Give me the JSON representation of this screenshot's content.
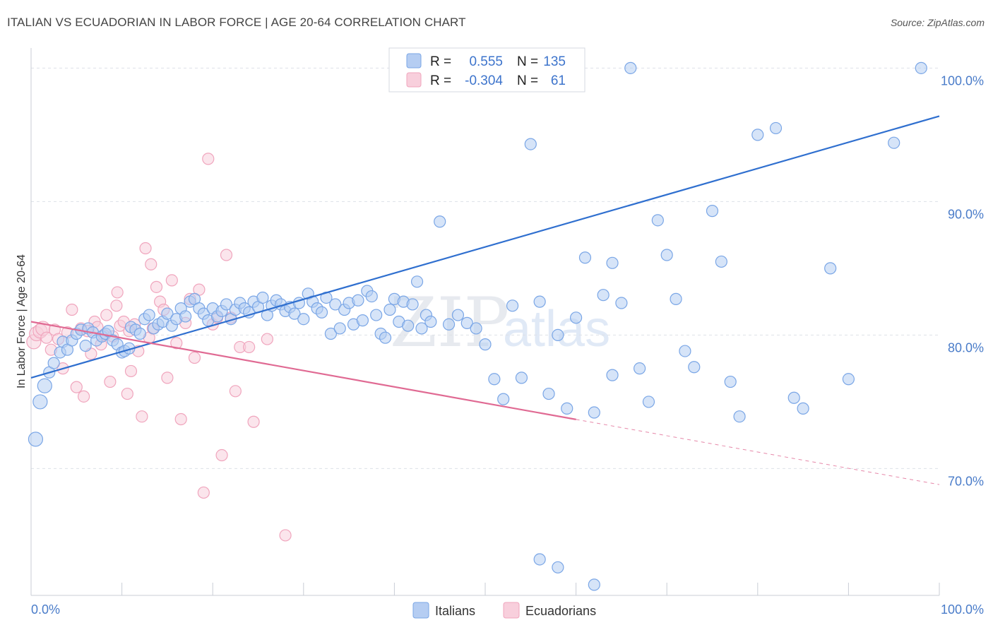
{
  "header": {
    "title": "ITALIAN VS ECUADORIAN IN LABOR FORCE | AGE 20-64 CORRELATION CHART",
    "source": "Source: ZipAtlas.com"
  },
  "watermark": {
    "zip": "ZIP",
    "atlas": "atlas"
  },
  "chart_data": {
    "type": "scatter",
    "xlabel": "",
    "ylabel": "In Labor Force | Age 20-64",
    "xlim": [
      0,
      100
    ],
    "ylim": [
      60.5,
      101.5
    ],
    "x_tick_labels": {
      "left": "0.0%",
      "right": "100.0%"
    },
    "y_ticks": [
      {
        "value": 100,
        "label": "100.0%"
      },
      {
        "value": 90,
        "label": "90.0%"
      },
      {
        "value": 80,
        "label": "80.0%"
      },
      {
        "value": 70,
        "label": "70.0%"
      }
    ],
    "grid": true,
    "legend_position": "top-center",
    "series": [
      {
        "name": "Italians",
        "color": "#7aa6e6",
        "fill": "#b5cdf2",
        "line_color": "#2f6fcf",
        "stats": {
          "r_label": "R =",
          "r": "0.555",
          "n_label": "N =",
          "n": "135"
        },
        "trend": {
          "x0": 0,
          "y0": 76.8,
          "x1": 100,
          "y1": 96.4,
          "dashed_from": null
        },
        "points": [
          [
            0.5,
            72.2
          ],
          [
            1,
            75.0
          ],
          [
            1.5,
            76.2
          ],
          [
            2,
            77.2
          ],
          [
            2.5,
            77.9
          ],
          [
            3.2,
            78.7
          ],
          [
            3.5,
            79.5
          ],
          [
            4,
            78.9
          ],
          [
            4.5,
            79.6
          ],
          [
            5,
            80.1
          ],
          [
            5.5,
            80.4
          ],
          [
            6,
            79.2
          ],
          [
            6.3,
            80.5
          ],
          [
            6.8,
            80.2
          ],
          [
            7.2,
            79.6
          ],
          [
            7.8,
            79.9
          ],
          [
            8.2,
            80.1
          ],
          [
            8.5,
            80.3
          ],
          [
            9,
            79.6
          ],
          [
            9.5,
            79.3
          ],
          [
            10,
            78.7
          ],
          [
            10.3,
            78.8
          ],
          [
            10.8,
            79.0
          ],
          [
            11,
            80.6
          ],
          [
            11.5,
            80.4
          ],
          [
            12,
            80.1
          ],
          [
            12.5,
            81.2
          ],
          [
            13,
            81.5
          ],
          [
            13.5,
            80.5
          ],
          [
            14,
            80.8
          ],
          [
            14.5,
            81.0
          ],
          [
            15,
            81.6
          ],
          [
            15.5,
            80.7
          ],
          [
            16,
            81.2
          ],
          [
            16.5,
            82.0
          ],
          [
            17,
            81.4
          ],
          [
            17.5,
            82.5
          ],
          [
            18,
            82.7
          ],
          [
            18.5,
            82.0
          ],
          [
            19,
            81.6
          ],
          [
            19.5,
            81.1
          ],
          [
            20,
            82.0
          ],
          [
            20.5,
            81.4
          ],
          [
            21,
            81.8
          ],
          [
            21.5,
            82.3
          ],
          [
            22,
            81.2
          ],
          [
            22.5,
            81.9
          ],
          [
            23,
            82.4
          ],
          [
            23.5,
            82.0
          ],
          [
            24,
            81.7
          ],
          [
            24.5,
            82.5
          ],
          [
            25,
            82.1
          ],
          [
            25.5,
            82.8
          ],
          [
            26,
            81.5
          ],
          [
            26.5,
            82.2
          ],
          [
            27,
            82.6
          ],
          [
            27.5,
            82.3
          ],
          [
            28,
            81.8
          ],
          [
            28.5,
            82.1
          ],
          [
            29,
            81.6
          ],
          [
            29.5,
            82.4
          ],
          [
            30,
            81.2
          ],
          [
            30.5,
            83.1
          ],
          [
            31,
            82.5
          ],
          [
            31.5,
            82.0
          ],
          [
            32,
            81.7
          ],
          [
            32.5,
            82.8
          ],
          [
            33,
            80.1
          ],
          [
            33.5,
            82.3
          ],
          [
            34,
            80.5
          ],
          [
            34.5,
            81.9
          ],
          [
            35,
            82.4
          ],
          [
            35.5,
            80.8
          ],
          [
            36,
            82.6
          ],
          [
            36.5,
            81.1
          ],
          [
            37,
            83.3
          ],
          [
            37.5,
            82.9
          ],
          [
            38,
            81.5
          ],
          [
            38.5,
            80.1
          ],
          [
            39,
            79.8
          ],
          [
            39.5,
            81.9
          ],
          [
            40,
            82.7
          ],
          [
            40.5,
            81.0
          ],
          [
            41,
            82.5
          ],
          [
            41.5,
            80.7
          ],
          [
            42,
            82.3
          ],
          [
            42.5,
            84.0
          ],
          [
            43,
            80.5
          ],
          [
            43.5,
            81.5
          ],
          [
            44,
            81.0
          ],
          [
            45,
            88.5
          ],
          [
            46,
            80.8
          ],
          [
            47,
            81.5
          ],
          [
            48,
            80.9
          ],
          [
            49,
            80.5
          ],
          [
            50,
            79.3
          ],
          [
            51,
            76.7
          ],
          [
            52,
            75.2
          ],
          [
            53,
            82.2
          ],
          [
            54,
            76.8
          ],
          [
            55,
            94.3
          ],
          [
            56,
            82.5
          ],
          [
            57,
            75.6
          ],
          [
            58,
            80.0
          ],
          [
            59,
            74.5
          ],
          [
            60,
            81.3
          ],
          [
            61,
            85.8
          ],
          [
            62,
            74.2
          ],
          [
            63,
            83.0
          ],
          [
            64,
            77.0
          ],
          [
            65,
            82.4
          ],
          [
            67,
            77.5
          ],
          [
            68,
            75.0
          ],
          [
            69,
            88.6
          ],
          [
            70,
            86.0
          ],
          [
            71,
            82.7
          ],
          [
            72,
            78.8
          ],
          [
            73,
            77.6
          ],
          [
            75,
            89.3
          ],
          [
            76,
            85.5
          ],
          [
            77,
            76.5
          ],
          [
            78,
            73.9
          ],
          [
            80,
            95.0
          ],
          [
            82,
            95.5
          ],
          [
            84,
            75.3
          ],
          [
            85,
            74.5
          ],
          [
            88,
            85.0
          ],
          [
            90,
            76.7
          ],
          [
            95,
            94.4
          ],
          [
            98,
            100.0
          ],
          [
            56,
            63.2
          ],
          [
            58,
            62.6
          ],
          [
            62,
            61.3
          ],
          [
            64,
            85.4
          ],
          [
            66,
            100.0
          ]
        ]
      },
      {
        "name": "Ecuadorians",
        "color": "#f0a5bd",
        "fill": "#f8cfdc",
        "line_color": "#e06a93",
        "stats": {
          "r_label": "R =",
          "r": "-0.304",
          "n_label": "N =",
          "n": "61"
        },
        "trend": {
          "x0": 0,
          "y0": 81.0,
          "x1": 100,
          "y1": 68.8,
          "dashed_from": 60
        },
        "points": [
          [
            0.3,
            79.5
          ],
          [
            0.6,
            80.1
          ],
          [
            1,
            80.3
          ],
          [
            1.3,
            80.5
          ],
          [
            1.7,
            79.8
          ],
          [
            2.2,
            78.9
          ],
          [
            2.6,
            80.4
          ],
          [
            3,
            79.7
          ],
          [
            3.5,
            77.5
          ],
          [
            4,
            80.2
          ],
          [
            4.5,
            81.9
          ],
          [
            5,
            76.1
          ],
          [
            5.5,
            80.5
          ],
          [
            5.8,
            75.4
          ],
          [
            6.2,
            80.3
          ],
          [
            6.6,
            78.6
          ],
          [
            7,
            81.0
          ],
          [
            7.3,
            80.6
          ],
          [
            7.7,
            79.3
          ],
          [
            8,
            80.0
          ],
          [
            8.3,
            81.5
          ],
          [
            8.7,
            76.5
          ],
          [
            9,
            79.9
          ],
          [
            9.4,
            82.2
          ],
          [
            9.8,
            80.7
          ],
          [
            10.2,
            81.0
          ],
          [
            10.6,
            75.6
          ],
          [
            11,
            77.3
          ],
          [
            11.4,
            80.8
          ],
          [
            11.8,
            78.8
          ],
          [
            12.2,
            73.9
          ],
          [
            12.6,
            86.5
          ],
          [
            13,
            79.8
          ],
          [
            13.4,
            80.5
          ],
          [
            13.8,
            83.6
          ],
          [
            14.2,
            82.5
          ],
          [
            14.6,
            81.9
          ],
          [
            15,
            76.8
          ],
          [
            15.5,
            84.1
          ],
          [
            16,
            79.4
          ],
          [
            16.5,
            73.7
          ],
          [
            17,
            80.9
          ],
          [
            17.5,
            82.7
          ],
          [
            18,
            78.3
          ],
          [
            18.5,
            83.4
          ],
          [
            19,
            68.2
          ],
          [
            19.5,
            93.2
          ],
          [
            20,
            80.8
          ],
          [
            20.5,
            81.3
          ],
          [
            21,
            71.0
          ],
          [
            21.5,
            86.0
          ],
          [
            22,
            81.3
          ],
          [
            22.5,
            75.8
          ],
          [
            23,
            79.1
          ],
          [
            24,
            79.1
          ],
          [
            24.5,
            73.5
          ],
          [
            26,
            79.7
          ],
          [
            28,
            65.0
          ],
          [
            10.8,
            80.3
          ],
          [
            13.2,
            85.3
          ],
          [
            9.5,
            83.2
          ]
        ]
      }
    ]
  }
}
